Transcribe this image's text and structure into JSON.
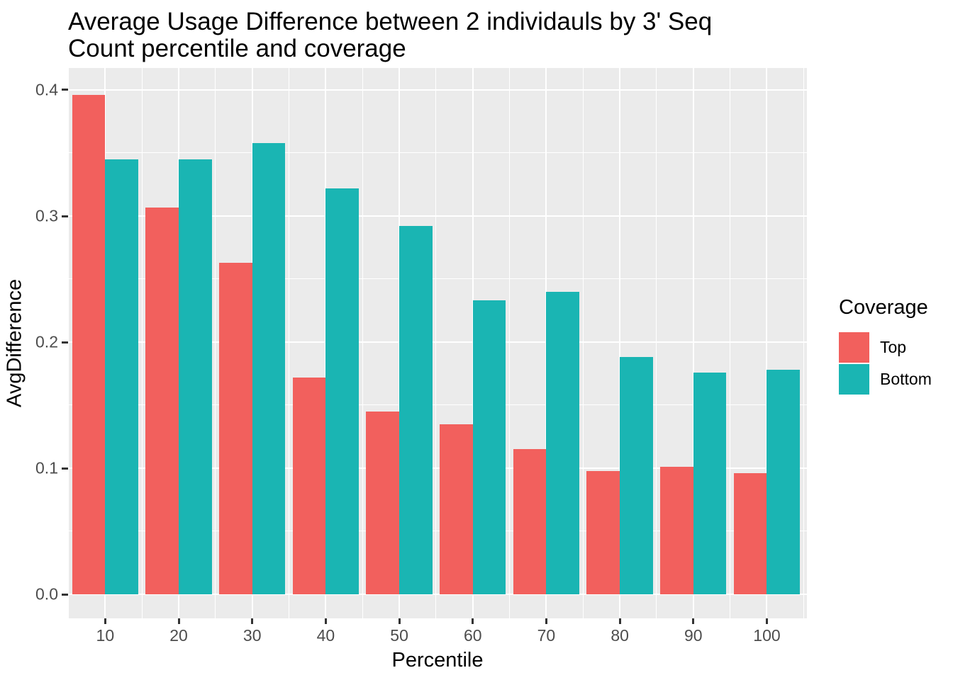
{
  "chart": {
    "title_lines": [
      "Average Usage Difference between 2 individauls by 3' Seq",
      "Count percentile and coverage"
    ],
    "colors": {
      "top_series": "#F2605D",
      "bottom_series": "#1AB5B3",
      "panel_background": "#EBEBEB",
      "gridline": "#FFFFFF",
      "tick_text": "#4D4D4D",
      "tick_mark": "#333333",
      "title_text": "#000000"
    }
  },
  "chart_data": {
    "type": "bar",
    "title": "Average Usage Difference between 2 individauls by 3' Seq Count percentile and coverage",
    "xlabel": "Percentile",
    "ylabel": "AvgDifference",
    "categories": [
      10,
      20,
      30,
      40,
      50,
      60,
      70,
      80,
      90,
      100
    ],
    "x_tick_labels": [
      "10",
      "20",
      "30",
      "40",
      "50",
      "60",
      "70",
      "80",
      "90",
      "100"
    ],
    "series": [
      {
        "name": "Top",
        "color": "#F2605D",
        "values": [
          0.396,
          0.307,
          0.263,
          0.172,
          0.145,
          0.135,
          0.115,
          0.098,
          0.101,
          0.096
        ]
      },
      {
        "name": "Bottom",
        "color": "#1AB5B3",
        "values": [
          0.345,
          0.345,
          0.358,
          0.322,
          0.292,
          0.233,
          0.24,
          0.188,
          0.176,
          0.178
        ]
      }
    ],
    "y_ticks": [
      0.0,
      0.1,
      0.2,
      0.3,
      0.4
    ],
    "y_tick_labels": [
      "0.0",
      "0.1",
      "0.2",
      "0.3",
      "0.4"
    ],
    "y_minor_ticks": [
      0.05,
      0.15,
      0.25,
      0.35
    ],
    "ylim": [
      -0.019,
      0.4174
    ],
    "xlim": [
      4.95,
      105.45
    ],
    "bar_group_width_units": 9,
    "grid": true,
    "legend": {
      "title": "Coverage",
      "position": "right",
      "entries": [
        "Top",
        "Bottom"
      ]
    }
  }
}
